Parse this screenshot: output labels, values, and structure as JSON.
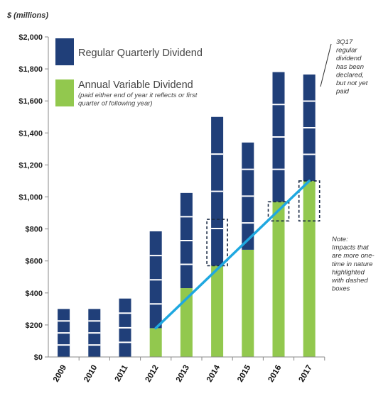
{
  "chart_data": {
    "type": "bar",
    "stacked": true,
    "unit_label": "$ (millions)",
    "categories": [
      "2009",
      "2010",
      "2011",
      "2012",
      "2013",
      "2014",
      "2015",
      "2016",
      "2017"
    ],
    "series": [
      {
        "name": "Annual Variable Dividend",
        "color": "#92c84e",
        "values": [
          0,
          0,
          0,
          180,
          430,
          570,
          670,
          970,
          1100
        ]
      },
      {
        "name": "Regular Quarterly Dividend",
        "color": "#203f79",
        "values": [
          300,
          300,
          365,
          605,
          595,
          930,
          670,
          810,
          665
        ]
      }
    ],
    "quarterly_segments": 4,
    "highlighted_variable_portion": [
      {
        "category": "2014",
        "from": 570,
        "to": 860
      },
      {
        "category": "2016",
        "from": 850,
        "to": 970
      },
      {
        "category": "2017",
        "from": 850,
        "to": 1100
      }
    ],
    "trend_line": {
      "from": {
        "category": "2012",
        "value": 180
      },
      "to": {
        "category": "2017",
        "value": 1100
      },
      "color": "#1fa8e0"
    },
    "ylim": [
      0,
      2000
    ],
    "yticks": [
      0,
      200,
      400,
      600,
      800,
      1000,
      1200,
      1400,
      1600,
      1800,
      2000
    ],
    "ytick_labels": [
      "$0",
      "$200",
      "$400",
      "$600",
      "$800",
      "$1,000",
      "$1,200",
      "$1,400",
      "$1,600",
      "$1,800",
      "$2,000"
    ],
    "legend": [
      {
        "label": "Regular Quarterly Dividend",
        "sublabel": ""
      },
      {
        "label": "Annual Variable Dividend",
        "sublabel": "(paid either end of year it reflects or first quarter of following year)"
      }
    ],
    "annotations": [
      {
        "id": "3q17",
        "lines": [
          "3Q17",
          "regular",
          "dividend",
          "has been",
          "declared,",
          "but not yet",
          "paid"
        ]
      },
      {
        "id": "note",
        "lines": [
          "Note:",
          "Impacts that",
          "are more one-",
          "time in nature",
          "highlighted",
          "with dashed",
          "boxes"
        ]
      }
    ],
    "grid": false
  }
}
